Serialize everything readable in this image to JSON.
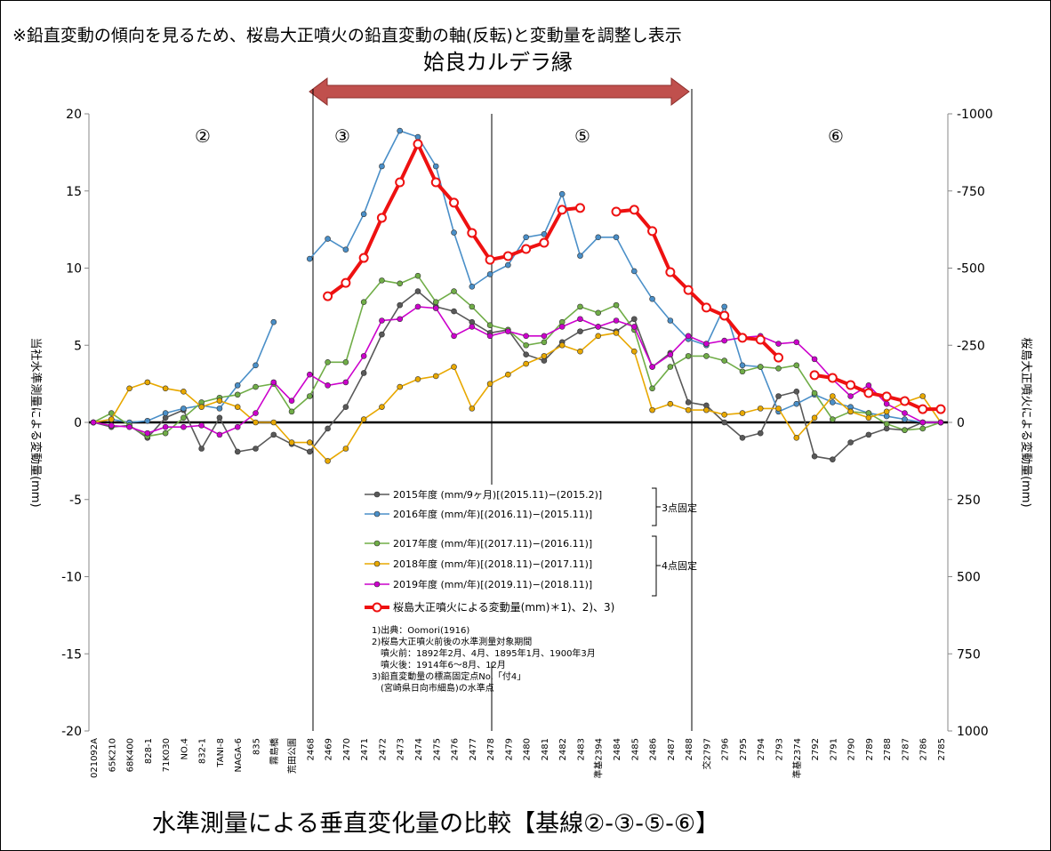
{
  "chart_data": {
    "type": "line",
    "note": "※鉛直変動の傾向を見るため、桜島大正噴火の鉛直変動の軸(反転)と変動量を調整し表示",
    "caldera_label": "姶良カルデラ縁",
    "regions": [
      "②",
      "③",
      "⑤",
      "⑥"
    ],
    "title": "水準測量による垂直変化量の比較【基線②-③-⑤-⑥】",
    "y_label": "当社水準測量による変動量(mm)",
    "y2_label": "桜島大正噴火による変動量(mm)",
    "categories": [
      "021092A",
      "65K210",
      "68K400",
      "828-1",
      "71K030",
      "NO.4",
      "832-1",
      "TANI-8",
      "NAGA-6",
      "835",
      "霧島橋",
      "荒田公園",
      "2468",
      "2469",
      "2470",
      "2471",
      "2472",
      "2473",
      "2474",
      "2475",
      "2476",
      "2477",
      "2478",
      "2479",
      "2480",
      "2481",
      "2482",
      "2483",
      "準基2394",
      "2484",
      "2485",
      "2486",
      "2487",
      "2488",
      "交2797",
      "2796",
      "2795",
      "2794",
      "2793",
      "準基2374",
      "2792",
      "2791",
      "2790",
      "2789",
      "2788",
      "2787",
      "2786",
      "2785"
    ],
    "ylim": [
      -20,
      20
    ],
    "yticks": [
      -20,
      -15,
      -10,
      -5,
      0,
      5,
      10,
      15,
      20
    ],
    "y2lim": [
      1000,
      -1000
    ],
    "y2ticks": [
      1000,
      750,
      500,
      250,
      0,
      -250,
      -500,
      -750,
      -1000
    ],
    "series": [
      {
        "name": "2015年度 (mm/9ヶ月)[(2015.11)−(2015.2)]",
        "color": "#595959",
        "values": [
          0,
          -0.3,
          -0.2,
          -1.0,
          0.3,
          0.8,
          -1.7,
          0.3,
          -1.9,
          -1.7,
          -0.8,
          -1.4,
          -1.9,
          -0.4,
          1.0,
          3.2,
          5.7,
          7.6,
          8.5,
          7.5,
          7.2,
          6.5,
          5.8,
          6.0,
          4.4,
          4.0,
          5.2,
          5.9,
          6.2,
          5.9,
          6.7,
          3.6,
          4.5,
          1.3,
          1.1,
          0.0,
          -1.0,
          -0.7,
          1.7,
          2.0,
          -2.2,
          -2.4,
          -1.3,
          -0.8,
          -0.4,
          -0.5,
          0,
          0
        ]
      },
      {
        "name": "2016年度 (mm/年)[(2016.11)−(2015.11)]",
        "color": "#4a8fc8",
        "values": [
          0,
          0.2,
          0,
          0.1,
          0.6,
          0.9,
          1.1,
          0.9,
          2.4,
          3.7,
          6.5,
          null,
          10.6,
          11.9,
          11.2,
          13.5,
          16.6,
          18.9,
          18.5,
          16.6,
          12.3,
          8.8,
          9.6,
          10.2,
          12.0,
          12.2,
          14.8,
          10.8,
          12.0,
          12.0,
          9.8,
          8.0,
          6.6,
          5.4,
          5.0,
          7.5,
          3.7,
          3.6,
          0.7,
          1.2,
          1.8,
          1.3,
          1.0,
          0.6,
          0.4,
          0.2,
          0,
          0
        ]
      },
      {
        "name": "2017年度 (mm/年)[(2017.11)−(2016.11)]",
        "color": "#70ad47",
        "values": [
          0,
          0.6,
          -0.2,
          -0.9,
          -0.7,
          0.3,
          1.3,
          1.6,
          1.8,
          2.3,
          2.5,
          0.7,
          1.7,
          3.9,
          3.9,
          7.8,
          9.2,
          9.0,
          9.5,
          7.8,
          8.5,
          7.5,
          6.3,
          6.0,
          5.0,
          5.2,
          6.5,
          7.5,
          7.1,
          7.6,
          6.0,
          2.2,
          3.6,
          4.3,
          4.3,
          4.0,
          3.3,
          3.6,
          3.5,
          3.7,
          1.9,
          0.2,
          0.7,
          0.6,
          -0.1,
          -0.5,
          -0.4,
          0
        ]
      },
      {
        "name": "2018年度 (mm/年)[(2018.11)−(2017.11)]",
        "color": "#e8a800",
        "values": [
          0,
          0.2,
          2.2,
          2.6,
          2.2,
          2.0,
          1.0,
          1.4,
          1.0,
          0,
          0,
          -1.3,
          -1.3,
          -2.5,
          -1.7,
          0.2,
          1.0,
          2.3,
          2.8,
          3.0,
          3.6,
          0.9,
          2.5,
          3.1,
          3.8,
          4.3,
          5.0,
          4.6,
          5.6,
          5.8,
          4.6,
          0.8,
          1.2,
          0.8,
          0.8,
          0.5,
          0.6,
          0.9,
          0.9,
          -1.0,
          0.3,
          1.7,
          0.7,
          0.3,
          0.7,
          1.3,
          1.7,
          0
        ]
      },
      {
        "name": "2019年度 (mm/年)[(2019.11)−(2018.11)]",
        "color": "#cc00cc",
        "values": [
          0,
          -0.2,
          -0.3,
          -0.7,
          -0.3,
          -0.3,
          -0.2,
          -0.8,
          -0.3,
          0.6,
          2.6,
          1.4,
          3.1,
          2.4,
          2.6,
          4.3,
          6.6,
          6.7,
          7.5,
          7.4,
          5.6,
          6.2,
          5.6,
          5.9,
          5.6,
          5.6,
          6.2,
          6.7,
          6.2,
          6.6,
          6.2,
          3.6,
          4.4,
          5.6,
          5.1,
          5.3,
          5.5,
          5.6,
          5.1,
          5.2,
          4.1,
          2.8,
          1.7,
          2.4,
          1.2,
          0.6,
          0,
          0
        ]
      },
      {
        "name": "桜島大正噴火による変動量(mm)＊1)、2)、3)",
        "color": "#ee1111",
        "axis": "y2",
        "values": [
          null,
          null,
          null,
          null,
          null,
          null,
          null,
          null,
          null,
          null,
          null,
          null,
          null,
          -409,
          -452,
          -533,
          -663,
          -778,
          -902,
          -778,
          -712,
          -614,
          -527,
          -539,
          -562,
          -582,
          -689,
          -695,
          null,
          -683,
          -689,
          -620,
          -487,
          -429,
          -372,
          -346,
          -274,
          -268,
          -210,
          null,
          -153,
          -144,
          -121,
          -95,
          -84,
          -69,
          -43,
          -43
        ]
      }
    ],
    "legend_groups": [
      "3点固定",
      "4点固定"
    ],
    "notes": [
      "1)出典：Oomori(1916)",
      "2)桜島大正噴火前後の水準測量対象期間",
      "噴火前：1892年2月、4月、1895年1月、1900年3月",
      "噴火後：1914年6～8月、12月",
      "3)鉛直変動量の標高固定点No.「付4」",
      "(宮崎県日向市細島)の水準点"
    ]
  }
}
